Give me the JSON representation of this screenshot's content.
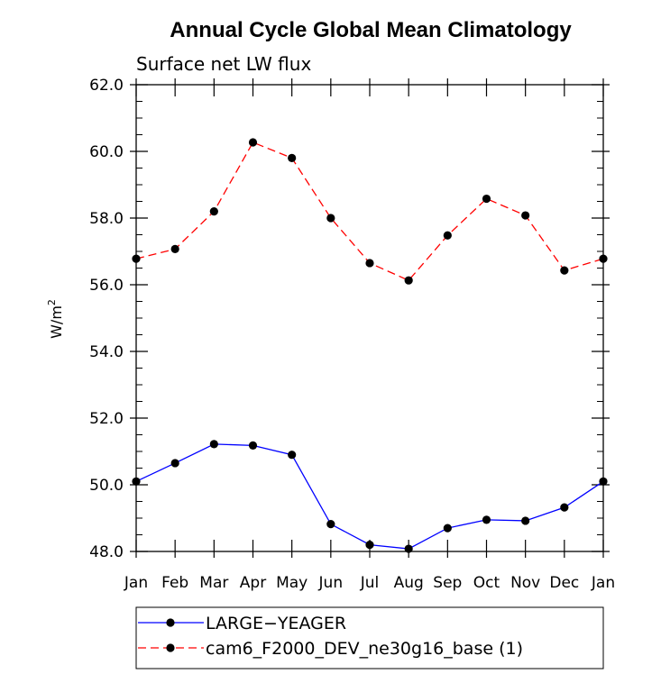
{
  "chart_data": {
    "type": "line",
    "title": "Annual Cycle Global Mean Climatology",
    "subtitle": "Surface net LW flux",
    "xlabel": "",
    "ylabel": "W/m",
    "ylabel_superscript": "2",
    "categories": [
      "Jan",
      "Feb",
      "Mar",
      "Apr",
      "May",
      "Jun",
      "Jul",
      "Aug",
      "Sep",
      "Oct",
      "Nov",
      "Dec",
      "Jan"
    ],
    "ylim": [
      48.0,
      62.0
    ],
    "yticks": [
      48.0,
      50.0,
      52.0,
      54.0,
      56.0,
      58.0,
      60.0,
      62.0
    ],
    "ytick_labels": [
      "48.0",
      "50.0",
      "52.0",
      "54.0",
      "56.0",
      "58.0",
      "60.0",
      "62.0"
    ],
    "y_minor_step": 0.5,
    "grid": false,
    "legend_position": "bottom",
    "series": [
      {
        "name": "LARGE−YEAGER",
        "color": "#0000ff",
        "line_style": "solid",
        "marker": "filled-circle",
        "values": [
          50.1,
          50.65,
          51.22,
          51.18,
          50.9,
          48.82,
          48.2,
          48.08,
          48.7,
          48.95,
          48.92,
          49.32,
          50.1
        ]
      },
      {
        "name": "cam6_F2000_DEV_ne30g16_base (1)",
        "color": "#ff0000",
        "line_style": "dashed",
        "marker": "filled-circle",
        "values": [
          56.78,
          57.07,
          58.2,
          60.27,
          59.8,
          58.0,
          56.65,
          56.13,
          57.48,
          58.58,
          58.08,
          56.43,
          56.78
        ]
      }
    ]
  }
}
